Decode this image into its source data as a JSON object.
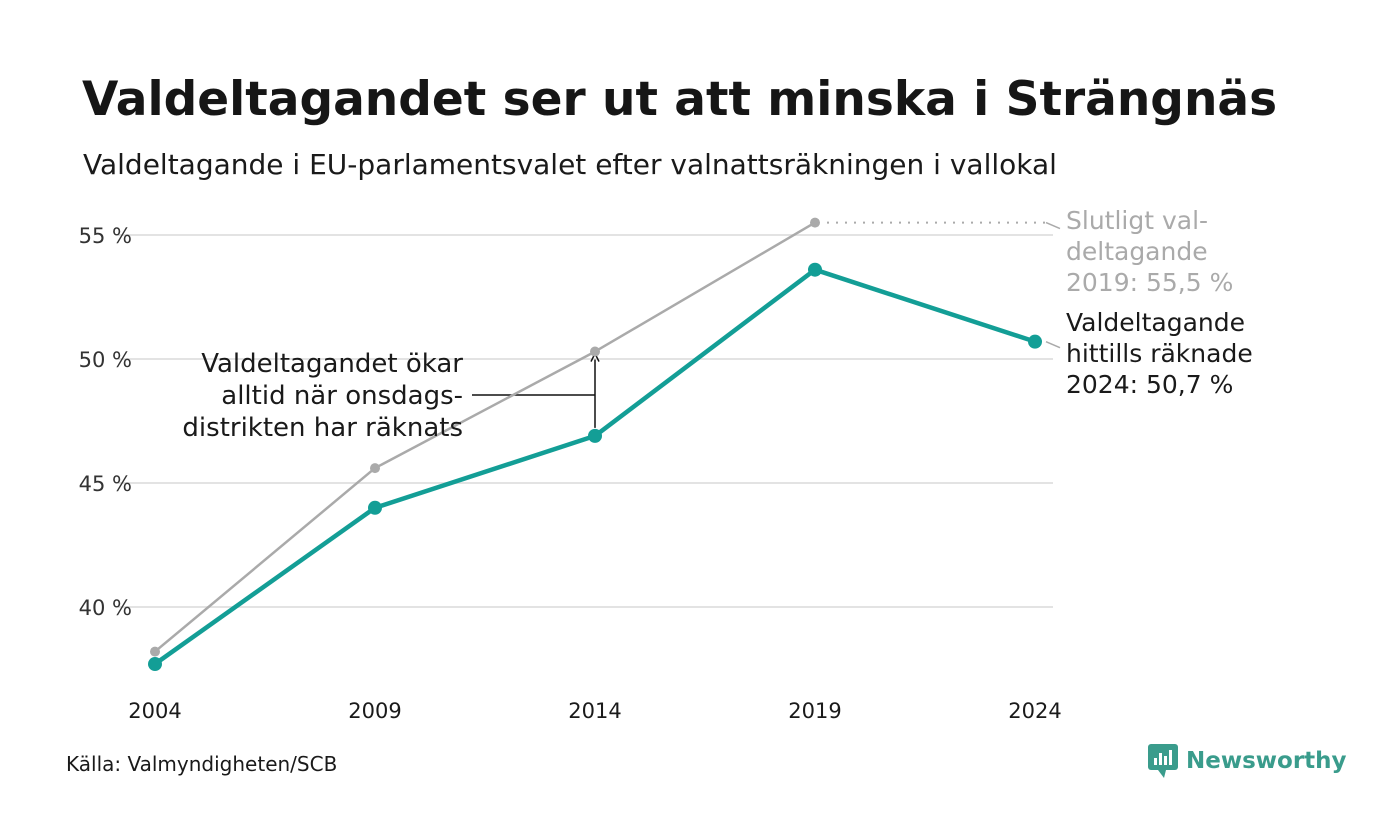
{
  "title": "Valdeltagandet ser ut att minska i Strängnäs",
  "subtitle": "Valdeltagande i EU-parlamentsvalet efter valnattsräkningen i vallokal",
  "source": "Källa: Valmyndigheten/SCB",
  "brand": {
    "name": "Newsworthy",
    "color": "#3a9c8c"
  },
  "chart_data": {
    "type": "line",
    "x": [
      2004,
      2009,
      2014,
      2019,
      2024
    ],
    "x_ticks": [
      "2004",
      "2009",
      "2014",
      "2019",
      "2024"
    ],
    "y_ticks": [
      {
        "value": 40,
        "label": "40 %"
      },
      {
        "value": 45,
        "label": "45 %"
      },
      {
        "value": 50,
        "label": "50 %"
      },
      {
        "value": 55,
        "label": "55 %"
      }
    ],
    "ylim": [
      36.5,
      56.5
    ],
    "grid": true,
    "series": [
      {
        "role": "final",
        "color": "#aaaaaa",
        "values": [
          38.2,
          45.6,
          50.3,
          55.5,
          null
        ]
      },
      {
        "role": "election-night",
        "color": "#139e96",
        "values": [
          37.7,
          44.0,
          46.9,
          53.6,
          50.7
        ]
      }
    ],
    "annotations": {
      "final_2019": [
        "Slutligt val-",
        "deltagande",
        "2019: 55,5 %"
      ],
      "counted_2024": [
        "Valdeltagande",
        "hittills räknade",
        "2024: 50,7 %"
      ],
      "wednesday_districts": [
        "Valdeltagandet ökar",
        "alltid när onsdags-",
        "distrikten har räknats"
      ]
    }
  }
}
